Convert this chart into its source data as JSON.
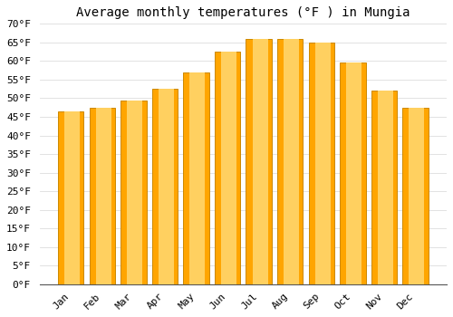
{
  "title": "Average monthly temperatures (°F ) in Mungia",
  "months": [
    "Jan",
    "Feb",
    "Mar",
    "Apr",
    "May",
    "Jun",
    "Jul",
    "Aug",
    "Sep",
    "Oct",
    "Nov",
    "Dec"
  ],
  "values": [
    46.5,
    47.5,
    49.5,
    52.5,
    57,
    62.5,
    66,
    66,
    65,
    59.5,
    52,
    47.5
  ],
  "bar_color": "#FFA500",
  "bar_edge_color": "#CC8800",
  "background_color": "#FFFFFF",
  "grid_color": "#DDDDDD",
  "ylim": [
    0,
    70
  ],
  "yticks": [
    0,
    5,
    10,
    15,
    20,
    25,
    30,
    35,
    40,
    45,
    50,
    55,
    60,
    65,
    70
  ],
  "title_fontsize": 10,
  "tick_fontsize": 8,
  "font_family": "monospace",
  "bar_width": 0.82
}
